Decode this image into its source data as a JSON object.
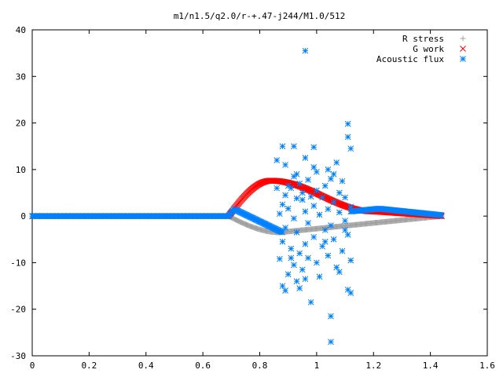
{
  "chart_data": {
    "type": "scatter",
    "title": "m1/n1.5/q2.0/r-+.47-j244/M1.0/512",
    "xlabel": "",
    "ylabel": "",
    "xlim": [
      0,
      1.6
    ],
    "ylim": [
      -30,
      40
    ],
    "x_ticks": [
      "0",
      "0.2",
      "0.4",
      "0.6",
      "0.8",
      "1",
      "1.2",
      "1.4",
      "1.6"
    ],
    "y_ticks": [
      "-30",
      "-20",
      "-10",
      "0",
      "10",
      "20",
      "30",
      "40"
    ],
    "legend_position": "top-right",
    "series": [
      {
        "name": "R stress",
        "marker": "plus",
        "color": "#a0a0a0",
        "segments": [
          {
            "x_start": 0.0,
            "x_end": 0.69,
            "step": 0.0035,
            "y": 0
          },
          {
            "x_start": 0.69,
            "x_end": 1.44,
            "step": 0.003,
            "y_curve": "rstress"
          }
        ]
      },
      {
        "name": "G work",
        "marker": "cross",
        "color": "#ff0000",
        "segments": [
          {
            "x_start": 0.0,
            "x_end": 0.69,
            "step": 0.0035,
            "y": 0
          },
          {
            "x_start": 0.69,
            "x_end": 1.44,
            "step": 0.0025,
            "y_curve": "gwork"
          }
        ]
      },
      {
        "name": "Acoustic flux",
        "marker": "star",
        "color": "#0080ff",
        "segments": [
          {
            "x_start": 0.0,
            "x_end": 0.69,
            "step": 0.0035,
            "y": 0
          },
          {
            "x_start": 0.69,
            "x_end": 0.88,
            "step": 0.003,
            "y_curve": "aflux_left"
          },
          {
            "x_start": 1.12,
            "x_end": 1.44,
            "step": 0.003,
            "y_curve": "aflux_right"
          }
        ],
        "scatter_points": [
          [
            0.96,
            35.5
          ],
          [
            1.11,
            19.8
          ],
          [
            1.11,
            17.0
          ],
          [
            0.88,
            15.0
          ],
          [
            0.92,
            15.0
          ],
          [
            1.12,
            14.5
          ],
          [
            0.99,
            14.8
          ],
          [
            0.96,
            12.5
          ],
          [
            0.86,
            12.0
          ],
          [
            0.89,
            11.0
          ],
          [
            1.04,
            10.0
          ],
          [
            0.99,
            10.5
          ],
          [
            1.06,
            9.0
          ],
          [
            0.93,
            9.0
          ],
          [
            0.92,
            8.5
          ],
          [
            1.05,
            8.0
          ],
          [
            0.97,
            7.8
          ],
          [
            1.09,
            7.5
          ],
          [
            0.94,
            7.0
          ],
          [
            1.03,
            6.5
          ],
          [
            0.86,
            6.0
          ],
          [
            0.91,
            6.0
          ],
          [
            1.0,
            5.5
          ],
          [
            0.95,
            5.0
          ],
          [
            1.08,
            5.0
          ],
          [
            0.89,
            4.5
          ],
          [
            0.98,
            4.2
          ],
          [
            1.02,
            4.0
          ],
          [
            1.1,
            4.0
          ],
          [
            0.93,
            3.8
          ],
          [
            1.06,
            3.0
          ],
          [
            0.88,
            2.5
          ],
          [
            0.99,
            2.2
          ],
          [
            1.12,
            2.0
          ],
          [
            0.9,
            1.6
          ],
          [
            1.04,
            1.5
          ],
          [
            0.96,
            1.0
          ],
          [
            1.08,
            0.8
          ],
          [
            0.87,
            0.5
          ],
          [
            1.01,
            0.3
          ],
          [
            0.92,
            -0.5
          ],
          [
            1.1,
            -1.0
          ],
          [
            0.97,
            -1.5
          ],
          [
            1.05,
            -2.0
          ],
          [
            0.89,
            -2.5
          ],
          [
            1.03,
            -3.0
          ],
          [
            0.93,
            -3.5
          ],
          [
            1.11,
            -4.0
          ],
          [
            0.99,
            -4.5
          ],
          [
            1.06,
            -5.0
          ],
          [
            0.88,
            -5.5
          ],
          [
            0.96,
            -6.0
          ],
          [
            1.02,
            -6.5
          ],
          [
            0.91,
            -7.0
          ],
          [
            1.09,
            -7.5
          ],
          [
            0.94,
            -8.0
          ],
          [
            1.04,
            -8.5
          ],
          [
            0.97,
            -9.0
          ],
          [
            0.87,
            -9.2
          ],
          [
            1.12,
            -9.5
          ],
          [
            1.0,
            -10.0
          ],
          [
            0.92,
            -10.5
          ],
          [
            1.07,
            -11.0
          ],
          [
            0.95,
            -11.5
          ],
          [
            1.08,
            -12.0
          ],
          [
            0.9,
            -12.5
          ],
          [
            1.01,
            -13.0
          ],
          [
            0.96,
            -13.5
          ],
          [
            0.93,
            -14.0
          ],
          [
            0.88,
            -15.0
          ],
          [
            1.11,
            -15.8
          ],
          [
            0.94,
            -15.5
          ],
          [
            0.89,
            -16.0
          ],
          [
            1.12,
            -16.5
          ],
          [
            0.98,
            -18.5
          ],
          [
            1.05,
            -21.5
          ],
          [
            1.05,
            -27.0
          ],
          [
            0.91,
            -9.0
          ],
          [
            1.03,
            -5.5
          ],
          [
            1.1,
            -3.0
          ],
          [
            0.95,
            3.5
          ],
          [
            1.0,
            9.5
          ],
          [
            1.07,
            11.5
          ],
          [
            0.9,
            6.5
          ]
        ]
      }
    ]
  }
}
